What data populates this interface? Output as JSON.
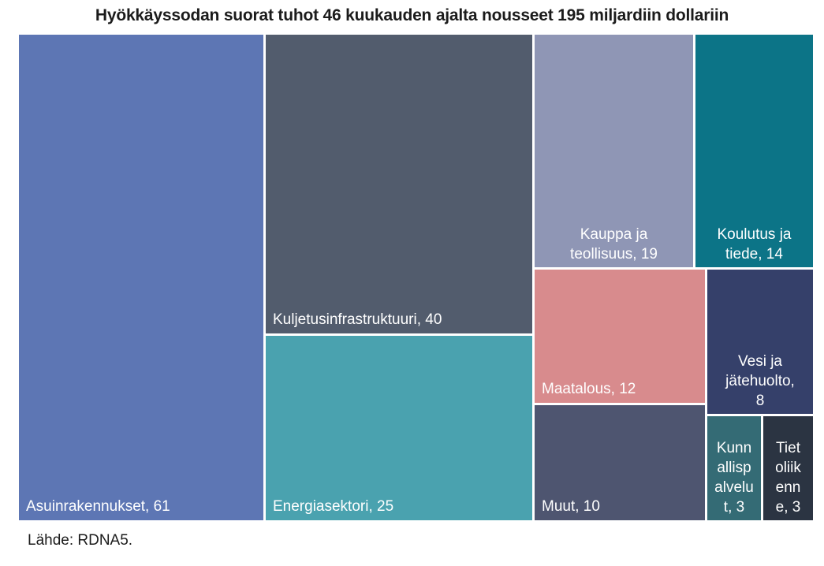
{
  "title": "Hyökkäyssodan suorat tuhot 46 kuukauden ajalta nousseet 195 miljardiin dollariin",
  "source": "Lähde: RDNA5.",
  "chart_data": {
    "type": "treemap",
    "title": "Hyökkäyssodan suorat tuhot 46 kuukauden ajalta nousseet 195 miljardiin dollariin",
    "total": 195,
    "unit": "miljardia dollaria",
    "legend": "none",
    "label_text_color": "#ffffff",
    "segments": [
      {
        "label": "Asuinrakennukset",
        "value": 61,
        "display": "Asuinrakennukset, 61",
        "color": "#5D76B4"
      },
      {
        "label": "Kuljetusinfrastruktuuri",
        "value": 40,
        "display": "Kuljetusinfrastruktuuri, 40",
        "color": "#525C6D"
      },
      {
        "label": "Energiasektori",
        "value": 25,
        "display": "Energiasektori, 25",
        "color": "#4AA2AF"
      },
      {
        "label": "Kauppa ja teollisuus",
        "value": 19,
        "display": "Kauppa ja\nteollisuus, 19",
        "color": "#8F96B5"
      },
      {
        "label": "Koulutus ja tiede",
        "value": 14,
        "display": "Koulutus ja\ntiede, 14",
        "color": "#0C7487"
      },
      {
        "label": "Maatalous",
        "value": 12,
        "display": "Maatalous, 12",
        "color": "#D88B8D"
      },
      {
        "label": "Vesi ja jätehuolto",
        "value": 8,
        "display": "Vesi ja\njätehuolto,\n8",
        "color": "#35406A"
      },
      {
        "label": "Muut",
        "value": 10,
        "display": "Muut, 10",
        "color": "#4E5570"
      },
      {
        "label": "Kunnallispalvelut",
        "value": 3,
        "display": "Kunn\nallisp\nalvelu\nt, 3",
        "color": "#346B75"
      },
      {
        "label": "Tietoliikenne",
        "value": 3,
        "display": "Tiet\noliik\nenn\ne, 3",
        "color": "#2B3442"
      }
    ]
  }
}
